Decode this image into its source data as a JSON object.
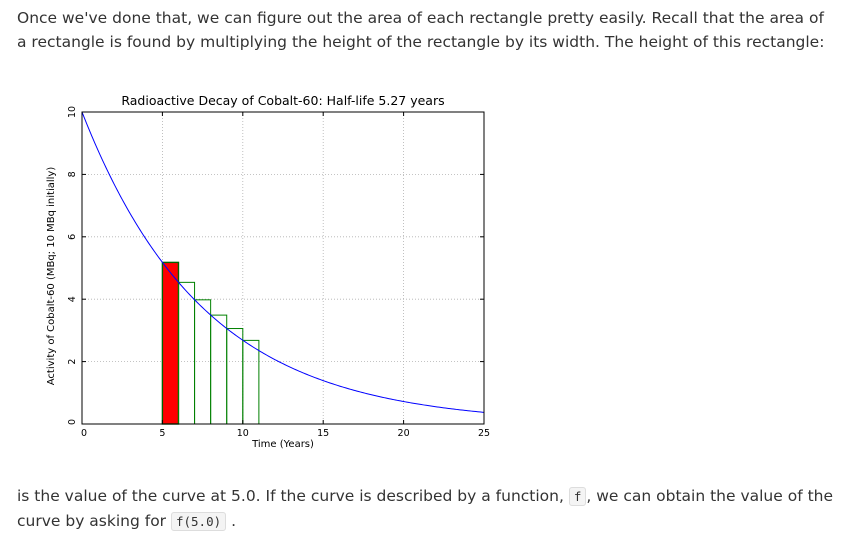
{
  "text": {
    "para1": "Once we've done that, we can figure out the area of each rectangle pretty easily. Recall that the area of a rectangle is found by multiplying the height of the rectangle by its width. The height of this rectangle:",
    "para2_before": "is the value of the curve at 5.0. If the curve is described by a function, ",
    "code_f": "f",
    "para2_middle": ", we can obtain the value of the curve by asking for ",
    "code_call": "f(5.0)",
    "para2_after": "."
  },
  "colors": {
    "curve": "#0000ff",
    "highlight_fill": "#ff0000",
    "highlight_stroke": "#006400",
    "rect_stroke": "#008000",
    "grid": "#b0b0b0"
  },
  "chart_data": {
    "type": "line",
    "title": "Radioactive Decay of Cobalt-60: Half-life 5.27 years",
    "xlabel": "Time (Years)",
    "ylabel": "Activity of Cobalt-60 (MBq; 10 MBq initially)",
    "xlim": [
      0,
      25
    ],
    "ylim": [
      0,
      10
    ],
    "xticks": [
      0,
      5,
      10,
      15,
      20,
      25
    ],
    "yticks": [
      0,
      2,
      4,
      6,
      8,
      10
    ],
    "grid": true,
    "curve": {
      "function": "10 * exp(-ln(2) * t / 5.27)",
      "x": [
        0,
        1,
        2,
        3,
        4,
        5,
        6,
        7,
        8,
        9,
        10,
        11,
        12,
        13,
        14,
        15,
        16,
        17,
        18,
        19,
        20,
        21,
        22,
        23,
        24,
        25
      ],
      "y": [
        10.0,
        8.77,
        7.69,
        6.74,
        5.91,
        5.18,
        4.54,
        3.98,
        3.49,
        3.06,
        2.68,
        2.35,
        2.06,
        1.81,
        1.59,
        1.39,
        1.22,
        1.07,
        0.94,
        0.82,
        0.72,
        0.63,
        0.55,
        0.49,
        0.43,
        0.37
      ]
    },
    "rectangles": [
      {
        "x_start": 5.0,
        "x_end": 6.0,
        "height": 5.18,
        "highlighted": true
      },
      {
        "x_start": 6.0,
        "x_end": 7.0,
        "height": 4.54,
        "highlighted": false
      },
      {
        "x_start": 7.0,
        "x_end": 8.0,
        "height": 3.98,
        "highlighted": false
      },
      {
        "x_start": 8.0,
        "x_end": 9.0,
        "height": 3.49,
        "highlighted": false
      },
      {
        "x_start": 9.0,
        "x_end": 10.0,
        "height": 3.06,
        "highlighted": false
      },
      {
        "x_start": 10.0,
        "x_end": 11.0,
        "height": 2.68,
        "highlighted": false
      }
    ]
  }
}
